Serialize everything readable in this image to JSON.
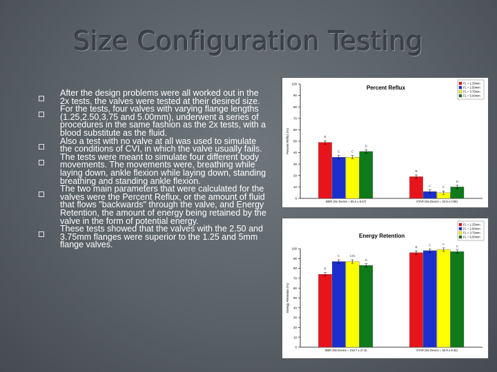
{
  "slide": {
    "title": "Size Configuration Testing",
    "bullets": [
      "After the design problems were all worked out in the 2x tests, the valves were tested at their desired size.",
      "For the tests, four valves with varying flange lengths (1.25,2.50,3.75 and 5.00mm), underwent a series of procedures in the same fashion as the 2x tests, with a blood substitute as the fluid.",
      "Also a test with no valve at all was used to simulate the conditions of CVI, in which the valve usually fails.",
      "The tests were meant to simulate four different body movements. The movements were, breathing while laying down, ankle flexion while laying down, standing breathing and standing ankle flexion.",
      "The two main parameters that were calculated for the valves were the Percent Reflux, or the amount of fluid that flows \"backwards\" through the valve, and Energy Retention, the amount of energy being retained by the valve in the form of potential energy.",
      "These tests showed that the valves with the 2.50 and 3.75mm flanges were superior to the 1.25 and 5mm flange valves."
    ]
  },
  "chart_data": [
    {
      "type": "bar",
      "title": "Percent Reflux",
      "ylabel": "Percent Reflux (%)",
      "ylim": [
        0,
        100
      ],
      "yticks": [
        0,
        10,
        20,
        30,
        40,
        50,
        60,
        70,
        80,
        90,
        100
      ],
      "categories": [
        "SBIR (No Device = 55.4 ± 5.57)",
        "STAR (No Device = 24.6 ± 0.86)"
      ],
      "series": [
        {
          "name": "FL = 1.25mm",
          "color": "#e8141c",
          "values": [
            49,
            19
          ]
        },
        {
          "name": "FL = 2.50mm",
          "color": "#1b2fcf",
          "values": [
            36,
            6
          ]
        },
        {
          "name": "FL = 3.75mm",
          "color": "#ffff00",
          "values": [
            36,
            5
          ]
        },
        {
          "name": "FL = 5.00mm",
          "color": "#0f7a1a",
          "values": [
            41,
            10
          ]
        }
      ],
      "letters": [
        [
          "B",
          "C",
          "C",
          "D"
        ],
        [
          "B",
          "C",
          "C",
          "D"
        ]
      ],
      "legend": "top-right",
      "grid": false
    },
    {
      "type": "bar",
      "title": "Energy Retention",
      "ylabel": "Energy Retention (%)",
      "ylim": [
        0,
        100
      ],
      "yticks": [
        0,
        10,
        20,
        30,
        40,
        50,
        60,
        70,
        80,
        90,
        100
      ],
      "categories": [
        "SBIR (No Device = 218.7 ± 27.8)",
        "STAR (No Device = 53.9 ± 8.42)"
      ],
      "series": [
        {
          "name": "FL = 1.25mm",
          "color": "#e8141c",
          "values": [
            74,
            96
          ]
        },
        {
          "name": "FL = 2.50mm",
          "color": "#1b2fcf",
          "values": [
            87,
            98
          ]
        },
        {
          "name": "FL = 3.75mm",
          "color": "#ffff00",
          "values": [
            87,
            99
          ]
        },
        {
          "name": "FL = 5.00mm",
          "color": "#0f7a1a",
          "values": [
            83,
            97
          ]
        }
      ],
      "letters": [
        [
          "B",
          "C",
          "C/D",
          "D"
        ],
        [
          "B",
          "C",
          "C",
          "C"
        ]
      ],
      "legend": "top-right",
      "grid": false
    }
  ]
}
